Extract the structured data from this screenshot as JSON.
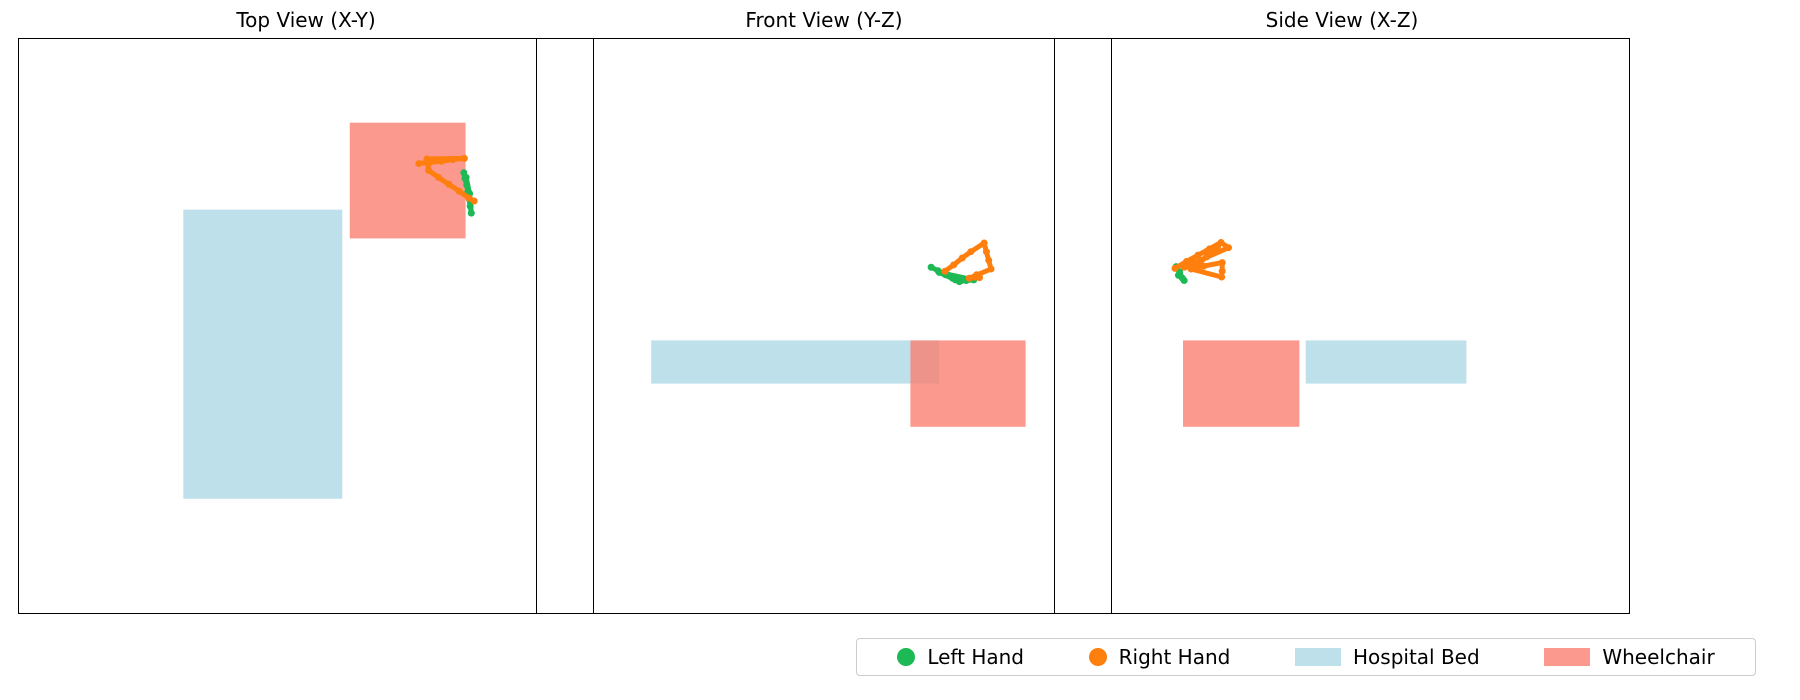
{
  "colors": {
    "left_hand": "#1db954",
    "right_hand": "#ff7f0e",
    "hospital_bed": "#add8e6",
    "wheelchair": "#fa8072"
  },
  "legend": {
    "placement": "bottom-right",
    "items": [
      {
        "label": "Left Hand",
        "kind": "marker",
        "color": "#1db954"
      },
      {
        "label": "Right Hand",
        "kind": "marker",
        "color": "#ff7f0e"
      },
      {
        "label": "Hospital Bed",
        "kind": "patch",
        "color": "#add8e6"
      },
      {
        "label": "Wheelchair",
        "kind": "patch",
        "color": "#fa8072"
      }
    ]
  },
  "chart_data": [
    {
      "type": "scatter",
      "title": "Top View (X-Y)",
      "xlabel": "",
      "ylabel": "",
      "xlim": [
        0,
        100
      ],
      "ylim": [
        0,
        100
      ],
      "grid": false,
      "ticks": false,
      "objects": [
        {
          "name": "Hospital Bed",
          "x": [
            28.7,
            56.3
          ],
          "y": [
            20.0,
            70.2
          ]
        },
        {
          "name": "Wheelchair",
          "x": [
            57.6,
            77.7
          ],
          "y": [
            65.2,
            85.3
          ]
        }
      ],
      "series": [
        {
          "name": "Left Hand",
          "points": [
            [
              77.4,
              76.6
            ],
            [
              77.6,
              75.6
            ],
            [
              77.9,
              74.5
            ],
            [
              78.1,
              73.3
            ],
            [
              78.3,
              72.1
            ],
            [
              78.5,
              70.8
            ],
            [
              78.7,
              69.6
            ],
            [
              78.4,
              73.0
            ],
            [
              77.8,
              75.8
            ]
          ]
        },
        {
          "name": "Right Hand",
          "points": [
            [
              69.6,
              78.2
            ],
            [
              71.5,
              78.4
            ],
            [
              73.5,
              78.6
            ],
            [
              75.5,
              78.9
            ],
            [
              77.5,
              79.1
            ],
            [
              71.0,
              79.0
            ],
            [
              71.3,
              77.0
            ],
            [
              73.0,
              75.8
            ],
            [
              74.8,
              74.6
            ],
            [
              76.6,
              73.4
            ],
            [
              78.3,
              72.2
            ],
            [
              79.2,
              71.7
            ]
          ]
        }
      ]
    },
    {
      "type": "scatter",
      "title": "Front View (Y-Z)",
      "xlabel": "",
      "ylabel": "",
      "xlim": [
        0,
        100
      ],
      "ylim": [
        0,
        100
      ],
      "grid": false,
      "ticks": false,
      "objects": [
        {
          "name": "Hospital Bed",
          "x": [
            20.0,
            70.0
          ],
          "y": [
            40.0,
            47.5
          ]
        },
        {
          "name": "Wheelchair",
          "x": [
            65.0,
            85.0
          ],
          "y": [
            32.5,
            47.5
          ]
        }
      ],
      "series": [
        {
          "name": "Left Hand",
          "points": [
            [
              68.6,
              60.2
            ],
            [
              69.8,
              59.6
            ],
            [
              71.1,
              58.9
            ],
            [
              72.3,
              58.3
            ],
            [
              73.5,
              57.7
            ],
            [
              74.7,
              57.9
            ],
            [
              76.0,
              58.0
            ],
            [
              70.0,
              59.3
            ],
            [
              72.8,
              58.0
            ]
          ]
        },
        {
          "name": "Right Hand",
          "points": [
            [
              71.0,
              59.5
            ],
            [
              72.5,
              60.6
            ],
            [
              74.0,
              61.8
            ],
            [
              75.5,
              62.9
            ],
            [
              77.8,
              64.4
            ],
            [
              78.2,
              62.9
            ],
            [
              78.6,
              61.4
            ],
            [
              79.0,
              59.9
            ],
            [
              75.2,
              58.3
            ],
            [
              77.0,
              58.4
            ],
            [
              76.5,
              58.9
            ]
          ]
        }
      ]
    },
    {
      "type": "scatter",
      "title": "Side View (X-Z)",
      "xlabel": "",
      "ylabel": "",
      "xlim": [
        0,
        100
      ],
      "ylim": [
        0,
        100
      ],
      "grid": false,
      "ticks": false,
      "objects": [
        {
          "name": "Wheelchair",
          "x": [
            22.4,
            42.6
          ],
          "y": [
            32.5,
            47.5
          ]
        },
        {
          "name": "Hospital Bed",
          "x": [
            43.7,
            71.6
          ],
          "y": [
            40.0,
            47.5
          ]
        }
      ],
      "series": [
        {
          "name": "Left Hand",
          "points": [
            [
              21.2,
              60.3
            ],
            [
              21.8,
              59.4
            ],
            [
              22.3,
              58.3
            ],
            [
              22.6,
              57.9
            ],
            [
              21.6,
              58.8
            ]
          ]
        },
        {
          "name": "Right Hand",
          "points": [
            [
              21.0,
              60.0
            ],
            [
              23.0,
              61.2
            ],
            [
              25.0,
              62.3
            ],
            [
              27.0,
              63.4
            ],
            [
              29.0,
              64.5
            ],
            [
              30.3,
              63.6
            ],
            [
              22.6,
              60.2
            ],
            [
              26.0,
              60.4
            ],
            [
              29.2,
              61.0
            ],
            [
              29.2,
              59.5
            ],
            [
              29.1,
              58.5
            ],
            [
              23.8,
              59.9
            ],
            [
              26.5,
              62.0
            ],
            [
              28.4,
              63.8
            ]
          ]
        }
      ]
    }
  ]
}
